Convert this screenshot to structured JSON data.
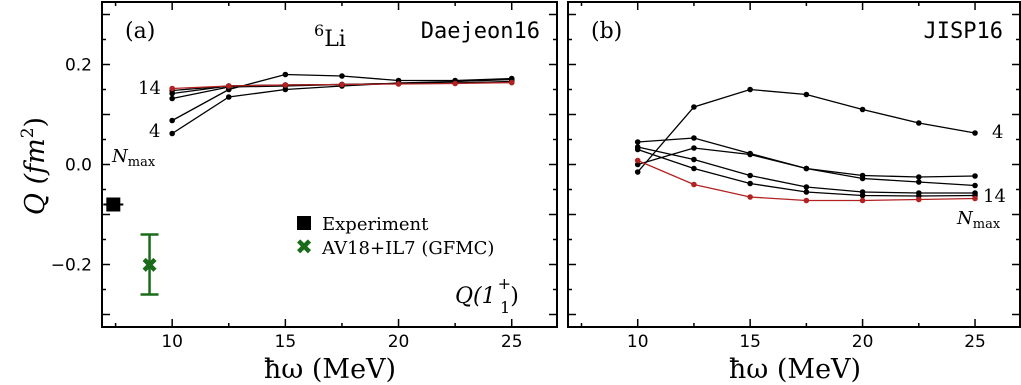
{
  "chart_data": [
    {
      "type": "line",
      "panel_label": "(a)",
      "nucleus_mass": "6",
      "nucleus_symbol": "Li",
      "interaction": "Daejeon16",
      "observable": "Q(1",
      "observable_sup": "+",
      "observable_sub": "1",
      "observable_close": ")",
      "xlabel": "ħω (MeV)",
      "ylabel_main": "Q (fm",
      "ylabel_sup": "2",
      "ylabel_close": ")",
      "xlim": [
        6.9,
        27.0
      ],
      "ylim": [
        -0.325,
        0.325
      ],
      "xticks": [
        10,
        15,
        20,
        25
      ],
      "yticks": [
        -0.2,
        0.0,
        0.2
      ],
      "ytick_labels": [
        "−0.2",
        "0.0",
        "0.2"
      ],
      "nmax_low_label": "4",
      "nmax_high_label": "14",
      "nmax_symbol": "N",
      "nmax_sub": "max",
      "x": [
        10,
        12.5,
        15,
        17.5,
        20,
        22.5,
        25
      ],
      "series": [
        {
          "nmax": 4,
          "color": "#000000",
          "values": [
            0.062,
            0.135,
            0.15,
            0.157,
            0.163,
            0.166,
            0.17
          ]
        },
        {
          "nmax": 6,
          "color": "#000000",
          "values": [
            0.088,
            0.15,
            0.18,
            0.177,
            0.168,
            0.168,
            0.172
          ]
        },
        {
          "nmax": 8,
          "color": "#000000",
          "values": [
            0.132,
            0.155,
            0.157,
            0.16,
            0.162,
            0.163,
            0.166
          ]
        },
        {
          "nmax": 10,
          "color": "#000000",
          "values": [
            0.142,
            0.157,
            0.159,
            0.16,
            0.162,
            0.163,
            0.165
          ]
        },
        {
          "nmax": 12,
          "color": "#000000",
          "values": [
            0.148,
            0.157,
            0.159,
            0.16,
            0.162,
            0.163,
            0.164
          ]
        },
        {
          "nmax": 14,
          "color": "#b22222",
          "values": [
            0.152,
            0.157,
            0.159,
            0.16,
            0.161,
            0.162,
            0.164
          ]
        }
      ],
      "experiment": {
        "label": "Experiment",
        "x": 7.4,
        "y": -0.08,
        "color": "#000000"
      },
      "gfmc": {
        "label": "AV18+IL7 (GFMC)",
        "x": 9.0,
        "y": -0.2,
        "err_low": -0.26,
        "err_high": -0.14,
        "color": "#1a6b1a"
      }
    },
    {
      "type": "line",
      "panel_label": "(b)",
      "interaction": "JISP16",
      "xlabel": "ħω (MeV)",
      "xlim": [
        6.9,
        27.0
      ],
      "ylim": [
        -0.325,
        0.325
      ],
      "xticks": [
        10,
        15,
        20,
        25
      ],
      "yticks": [
        -0.2,
        0.0,
        0.2
      ],
      "nmax_low_label": "4",
      "nmax_high_label": "14",
      "nmax_symbol": "N",
      "nmax_sub": "max",
      "x": [
        10,
        12.5,
        15,
        17.5,
        20,
        22.5,
        25
      ],
      "series": [
        {
          "nmax": 4,
          "color": "#000000",
          "values": [
            -0.015,
            0.115,
            0.15,
            0.14,
            0.11,
            0.083,
            0.063
          ]
        },
        {
          "nmax": 6,
          "color": "#000000",
          "values": [
            0.045,
            0.053,
            0.022,
            -0.008,
            -0.022,
            -0.025,
            -0.023
          ]
        },
        {
          "nmax": 8,
          "color": "#000000",
          "values": [
            0.035,
            0.01,
            -0.022,
            -0.045,
            -0.055,
            -0.057,
            -0.057
          ]
        },
        {
          "nmax": 10,
          "color": "#000000",
          "values": [
            0.03,
            -0.008,
            -0.038,
            -0.055,
            -0.062,
            -0.063,
            -0.062
          ]
        },
        {
          "nmax": 12,
          "color": "#000000",
          "values": [
            0.0,
            0.033,
            0.02,
            -0.008,
            -0.028,
            -0.035,
            -0.042
          ]
        },
        {
          "nmax": 14,
          "color": "#b22222",
          "values": [
            0.008,
            -0.04,
            -0.065,
            -0.072,
            -0.072,
            -0.07,
            -0.068
          ]
        }
      ]
    }
  ],
  "legend": {
    "experiment_label": "Experiment",
    "gfmc_label": "AV18+IL7 (GFMC)"
  }
}
